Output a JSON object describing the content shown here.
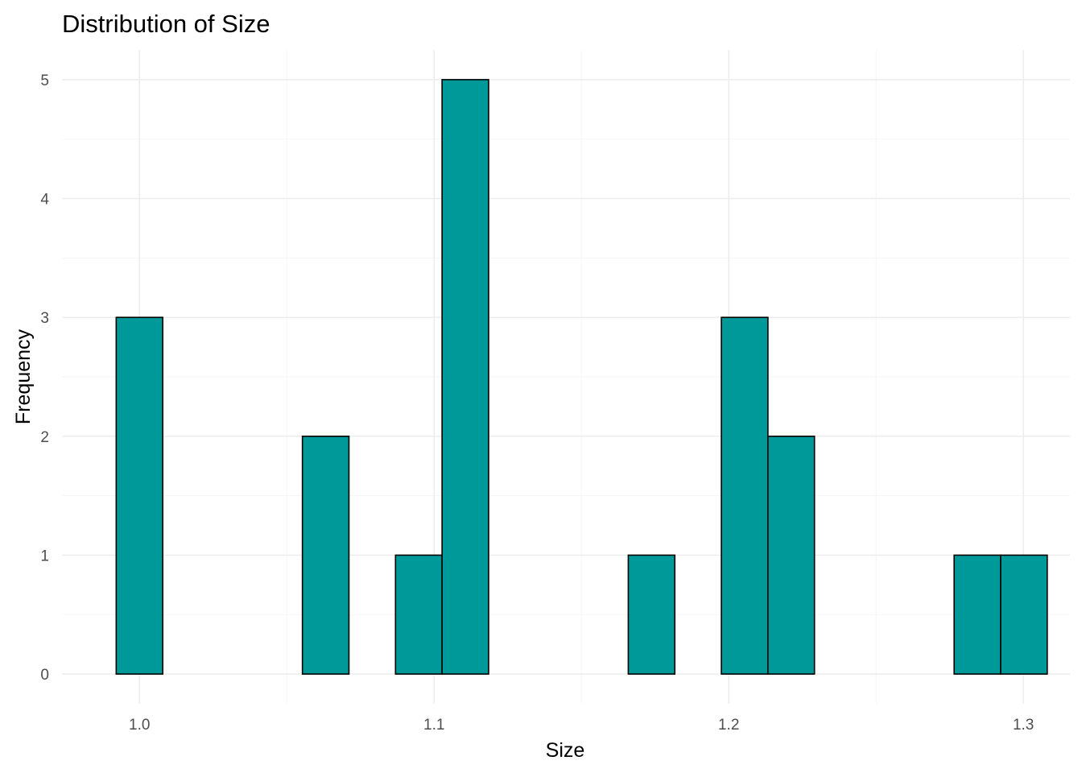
{
  "chart_data": {
    "type": "bar",
    "title": "Distribution of Size",
    "xlabel": "Size",
    "ylabel": "Frequency",
    "xlim": [
      0.9737,
      1.3158
    ],
    "ylim": [
      -0.25,
      5.25
    ],
    "bin_width": 0.0158,
    "x_ticks": [
      {
        "value": 1.0,
        "label": "1.0"
      },
      {
        "value": 1.1,
        "label": "1.1"
      },
      {
        "value": 1.2,
        "label": "1.2"
      },
      {
        "value": 1.3,
        "label": "1.3"
      }
    ],
    "y_ticks": [
      {
        "value": 0,
        "label": "0"
      },
      {
        "value": 1,
        "label": "1"
      },
      {
        "value": 2,
        "label": "2"
      },
      {
        "value": 3,
        "label": "3"
      },
      {
        "value": 4,
        "label": "4"
      },
      {
        "value": 5,
        "label": "5"
      }
    ],
    "bins": [
      {
        "center": 1.0,
        "count": 3
      },
      {
        "center": 1.0158,
        "count": 0
      },
      {
        "center": 1.0316,
        "count": 0
      },
      {
        "center": 1.0474,
        "count": 0
      },
      {
        "center": 1.0632,
        "count": 2
      },
      {
        "center": 1.079,
        "count": 0
      },
      {
        "center": 1.0948,
        "count": 1
      },
      {
        "center": 1.1106,
        "count": 5
      },
      {
        "center": 1.1264,
        "count": 0
      },
      {
        "center": 1.1422,
        "count": 0
      },
      {
        "center": 1.158,
        "count": 0
      },
      {
        "center": 1.1738,
        "count": 1
      },
      {
        "center": 1.1896,
        "count": 0
      },
      {
        "center": 1.2054,
        "count": 3
      },
      {
        "center": 1.2212,
        "count": 2
      },
      {
        "center": 1.237,
        "count": 0
      },
      {
        "center": 1.2528,
        "count": 0
      },
      {
        "center": 1.2686,
        "count": 0
      },
      {
        "center": 1.2844,
        "count": 1
      },
      {
        "center": 1.3002,
        "count": 1
      }
    ],
    "grid": true,
    "colors": {
      "bar_fill": "#009999",
      "bar_outline": "#000000"
    }
  }
}
